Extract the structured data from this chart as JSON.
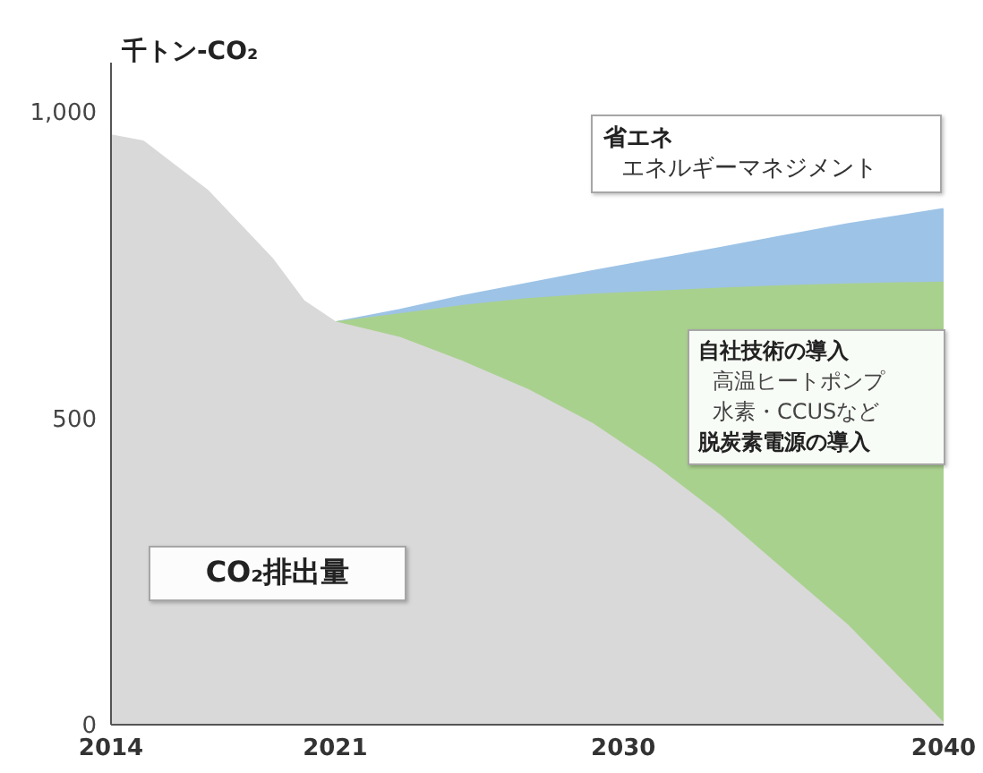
{
  "chart_data": {
    "type": "area",
    "ylabel": "千トン-CO₂",
    "x": [
      2014,
      2015,
      2016,
      2017,
      2018,
      2019,
      2020,
      2021,
      2023,
      2025,
      2027,
      2029,
      2031,
      2033,
      2035,
      2037,
      2040
    ],
    "series": [
      {
        "color": "#9dc3e6",
        "values": [
          null,
          null,
          null,
          null,
          null,
          null,
          null,
          655,
          675,
          698,
          718,
          738,
          757,
          776,
          796,
          815,
          840
        ]
      },
      {
        "color": "#a9d18e",
        "values": [
          null,
          null,
          null,
          null,
          null,
          null,
          null,
          655,
          668,
          682,
          693,
          700,
          705,
          710,
          714,
          717,
          720
        ]
      },
      {
        "color": "#d9d9d9",
        "values": [
          960,
          950,
          910,
          870,
          815,
          760,
          690,
          655,
          630,
          590,
          545,
          490,
          420,
          340,
          250,
          160,
          0
        ]
      }
    ],
    "xlim": [
      2014,
      2040
    ],
    "xticks": [
      2014,
      2021,
      2030,
      2040
    ],
    "ylim": [
      0,
      1080
    ],
    "yticks": [
      0,
      500,
      {
        "value": 1000,
        "label": "1,000"
      }
    ],
    "grid": false,
    "legend": false,
    "annotations": [
      "CO₂排出量",
      "省エネ",
      "エネルギーマネジメント",
      "自社技術の導入",
      "高温ヒートポンプ",
      "水素・CCUSなど",
      "脱炭素電源の導入"
    ]
  }
}
